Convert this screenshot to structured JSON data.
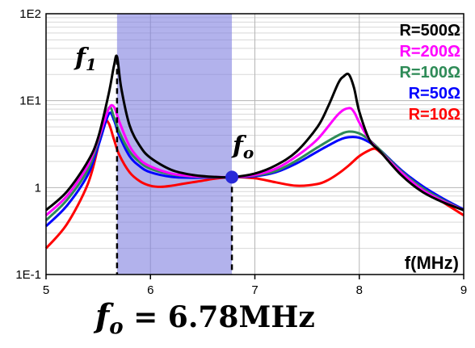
{
  "chart_data": {
    "type": "line",
    "xlabel": "f(MHz)",
    "x_tick_labels": [
      "5",
      "6",
      "7",
      "8",
      "9"
    ],
    "xlim": [
      5,
      9
    ],
    "y_scale": "log",
    "y_tick_labels": [
      "1E-1",
      "1",
      "1E1",
      "1E2"
    ],
    "ylim": [
      0.1,
      100
    ],
    "grid": true,
    "legend_position": "top-right",
    "shaded_band_x": [
      5.68,
      6.78
    ],
    "marker_point": {
      "x": 6.78,
      "y": 1.32
    },
    "dashed_markers_x": [
      5.68,
      6.78
    ],
    "labels": {
      "f1": {
        "main": "f",
        "sub": "1"
      },
      "fo": {
        "main": "f",
        "sub": "o"
      }
    },
    "formula": {
      "main": "f",
      "sub": "o",
      "rest": " = 6.78MHz"
    },
    "series": [
      {
        "name": "R=500Ω",
        "color": "#000000",
        "x": [
          5.0,
          5.2,
          5.4,
          5.5,
          5.6,
          5.65,
          5.68,
          5.72,
          5.8,
          5.9,
          6.0,
          6.2,
          6.4,
          6.6,
          6.78,
          7.0,
          7.2,
          7.4,
          7.6,
          7.7,
          7.8,
          7.85,
          7.9,
          7.95,
          8.0,
          8.1,
          8.2,
          8.4,
          8.6,
          8.8,
          9.0
        ],
        "y": [
          0.55,
          0.9,
          2.0,
          3.8,
          12,
          25,
          32,
          14,
          5.2,
          3.0,
          2.2,
          1.6,
          1.4,
          1.33,
          1.32,
          1.45,
          1.8,
          2.6,
          5.0,
          8.5,
          16,
          19,
          20,
          14,
          7.5,
          3.5,
          2.6,
          1.4,
          0.9,
          0.68,
          0.55
        ]
      },
      {
        "name": "R=200Ω",
        "color": "#ff00ff",
        "x": [
          5.0,
          5.2,
          5.4,
          5.5,
          5.6,
          5.65,
          5.7,
          5.8,
          5.9,
          6.0,
          6.2,
          6.4,
          6.6,
          6.78,
          7.0,
          7.2,
          7.4,
          7.6,
          7.8,
          7.9,
          7.95,
          8.0,
          8.1,
          8.2,
          8.4,
          8.6,
          8.8,
          9.0
        ],
        "y": [
          0.48,
          0.8,
          1.8,
          3.6,
          8.0,
          8.5,
          5.8,
          3.0,
          2.1,
          1.75,
          1.45,
          1.35,
          1.33,
          1.32,
          1.4,
          1.65,
          2.3,
          3.6,
          7.0,
          8.2,
          7.4,
          5.6,
          3.5,
          2.6,
          1.5,
          0.95,
          0.7,
          0.55
        ]
      },
      {
        "name": "R=100Ω",
        "color": "#2e8b57",
        "x": [
          5.0,
          5.2,
          5.4,
          5.5,
          5.6,
          5.65,
          5.7,
          5.8,
          5.9,
          6.0,
          6.2,
          6.4,
          6.6,
          6.78,
          7.0,
          7.2,
          7.4,
          7.6,
          7.8,
          7.9,
          8.0,
          8.1,
          8.2,
          8.4,
          8.6,
          8.8,
          9.0
        ],
        "y": [
          0.42,
          0.72,
          1.6,
          3.4,
          8.2,
          6.5,
          4.4,
          2.6,
          1.95,
          1.65,
          1.42,
          1.34,
          1.32,
          1.32,
          1.38,
          1.55,
          2.05,
          2.9,
          4.0,
          4.4,
          4.2,
          3.5,
          2.7,
          1.55,
          1.0,
          0.72,
          0.55
        ]
      },
      {
        "name": "R=50Ω",
        "color": "#0000ff",
        "x": [
          5.0,
          5.2,
          5.4,
          5.5,
          5.6,
          5.65,
          5.7,
          5.8,
          5.9,
          6.0,
          6.2,
          6.4,
          6.6,
          6.78,
          7.0,
          7.2,
          7.4,
          7.6,
          7.8,
          7.9,
          8.0,
          8.1,
          8.2,
          8.4,
          8.6,
          8.8,
          9.0
        ],
        "y": [
          0.36,
          0.62,
          1.4,
          3.0,
          7.0,
          6.0,
          4.0,
          2.3,
          1.75,
          1.5,
          1.33,
          1.3,
          1.31,
          1.32,
          1.35,
          1.5,
          1.9,
          2.6,
          3.5,
          3.8,
          3.75,
          3.3,
          2.7,
          1.6,
          1.05,
          0.75,
          0.56
        ]
      },
      {
        "name": "R=10Ω",
        "color": "#ff0000",
        "x": [
          5.0,
          5.2,
          5.4,
          5.5,
          5.55,
          5.6,
          5.65,
          5.7,
          5.8,
          5.9,
          6.0,
          6.1,
          6.2,
          6.3,
          6.4,
          6.5,
          6.6,
          6.78,
          7.0,
          7.2,
          7.4,
          7.6,
          7.7,
          7.8,
          7.9,
          8.0,
          8.1,
          8.15,
          8.2,
          8.3,
          8.4,
          8.6,
          8.8,
          9.0
        ],
        "y": [
          0.2,
          0.38,
          1.1,
          3.0,
          5.8,
          5.5,
          3.6,
          2.4,
          1.5,
          1.18,
          1.05,
          1.02,
          1.05,
          1.1,
          1.15,
          1.2,
          1.26,
          1.32,
          1.28,
          1.15,
          1.05,
          1.1,
          1.22,
          1.45,
          1.8,
          2.3,
          2.7,
          2.8,
          2.55,
          2.0,
          1.55,
          0.98,
          0.68,
          0.48
        ]
      }
    ]
  }
}
